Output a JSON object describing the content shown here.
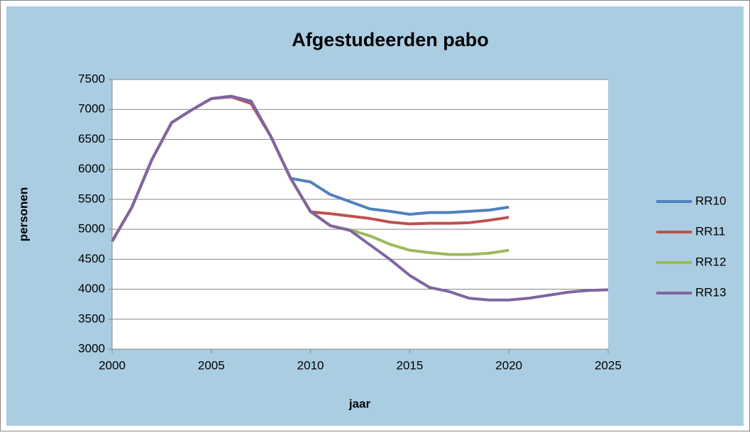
{
  "chart_data": {
    "type": "line",
    "title": "Afgestudeerden pabo",
    "x_label": "jaar",
    "y_label": "personen",
    "x": [
      2000,
      2001,
      2002,
      2003,
      2004,
      2005,
      2006,
      2007,
      2008,
      2009,
      2010,
      2011,
      2012,
      2013,
      2014,
      2015,
      2016,
      2017,
      2018,
      2019,
      2020,
      2021,
      2022,
      2023,
      2024,
      2025
    ],
    "series": [
      {
        "name": "RR10",
        "color": "#4f81bd",
        "values": [
          4800,
          5370,
          6160,
          6780,
          6990,
          7180,
          7220,
          7140,
          6550,
          5850,
          5790,
          5580,
          5460,
          5340,
          5300,
          5250,
          5280,
          5280,
          5300,
          5320,
          5370,
          null,
          null,
          null,
          null,
          null
        ]
      },
      {
        "name": "RR11",
        "color": "#c0504d",
        "values": [
          4800,
          5370,
          6160,
          6780,
          6990,
          7180,
          7210,
          7100,
          6550,
          5850,
          5290,
          5260,
          5220,
          5180,
          5120,
          5090,
          5100,
          5100,
          5110,
          5150,
          5200,
          null,
          null,
          null,
          null,
          null
        ]
      },
      {
        "name": "RR12",
        "color": "#9bbb59",
        "values": [
          4800,
          5370,
          6160,
          6780,
          6990,
          7180,
          7220,
          7140,
          6550,
          5850,
          5290,
          5060,
          4990,
          4890,
          4750,
          4650,
          4610,
          4580,
          4580,
          4600,
          4650,
          null,
          null,
          null,
          null,
          null
        ]
      },
      {
        "name": "RR13",
        "color": "#8064a2",
        "values": [
          4800,
          5370,
          6160,
          6780,
          6990,
          7180,
          7220,
          7140,
          6550,
          5850,
          5300,
          5060,
          4980,
          4740,
          4500,
          4230,
          4030,
          3960,
          3850,
          3820,
          3820,
          3850,
          3900,
          3950,
          3980,
          3990
        ]
      }
    ],
    "xlim": [
      2000,
      2025
    ],
    "xticks": [
      2000,
      2005,
      2010,
      2015,
      2020,
      2025
    ],
    "ylim": [
      3000,
      7500
    ],
    "yticks": [
      3000,
      3500,
      4000,
      4500,
      5000,
      5500,
      6000,
      6500,
      7000,
      7500
    ],
    "grid": true,
    "legend": "right"
  }
}
